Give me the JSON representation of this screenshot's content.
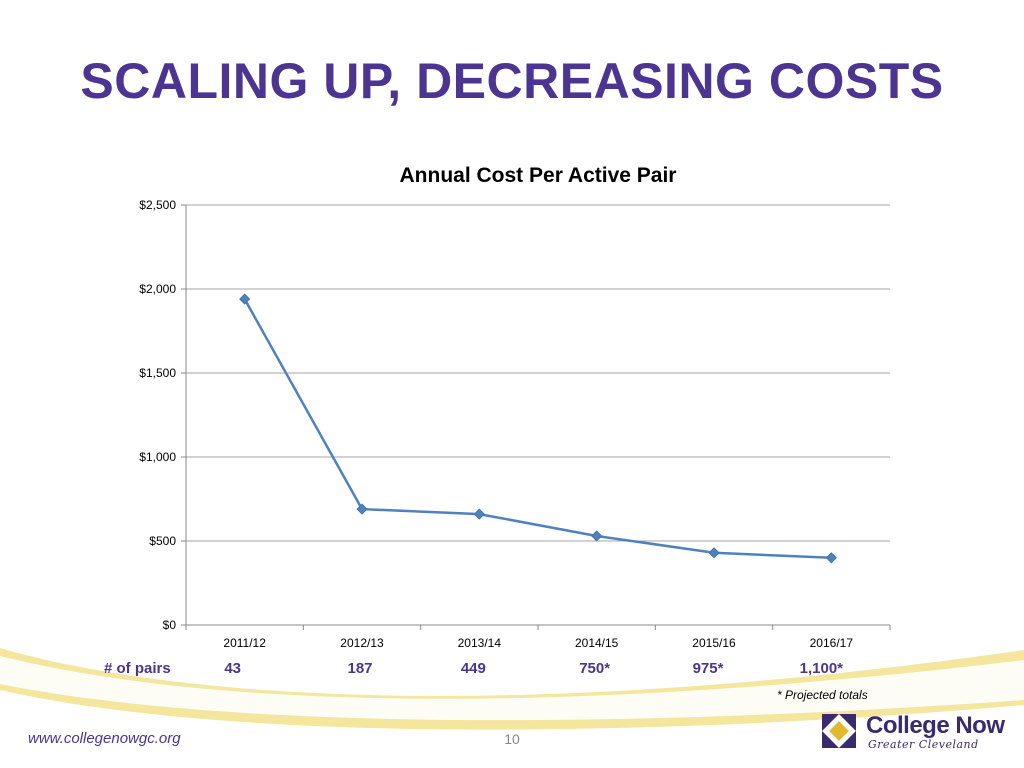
{
  "slide": {
    "title": "SCALING UP, DECREASING COSTS",
    "page_number": "10",
    "url": "www.collegenowgc.org",
    "footnote": "* Projected totals"
  },
  "logo": {
    "name": "College Now",
    "subtitle": "Greater Cleveland"
  },
  "pairs": {
    "label": "# of pairs",
    "values": [
      "43",
      "187",
      "449",
      "750*",
      "975*",
      "1,100*"
    ]
  },
  "colors": {
    "title": "#4b3591",
    "line": "#4f81bd",
    "swoosh": "#f2e28c",
    "logo_gold": "#e0b930"
  },
  "chart_data": {
    "type": "line",
    "title": "Annual Cost Per Active Pair",
    "categories": [
      "2011/12",
      "2012/13",
      "2013/14",
      "2014/15",
      "2015/16",
      "2016/17"
    ],
    "series": [
      {
        "values": [
          1940,
          690,
          660,
          530,
          430,
          400
        ]
      }
    ],
    "ylim": [
      0,
      2500
    ],
    "yticks": [
      0,
      500,
      1000,
      1500,
      2000,
      2500
    ],
    "ytick_labels": [
      "$0",
      "$500",
      "$1,000",
      "$1,500",
      "$2,000",
      "$2,500"
    ],
    "grid": true,
    "marker": "diamond"
  }
}
